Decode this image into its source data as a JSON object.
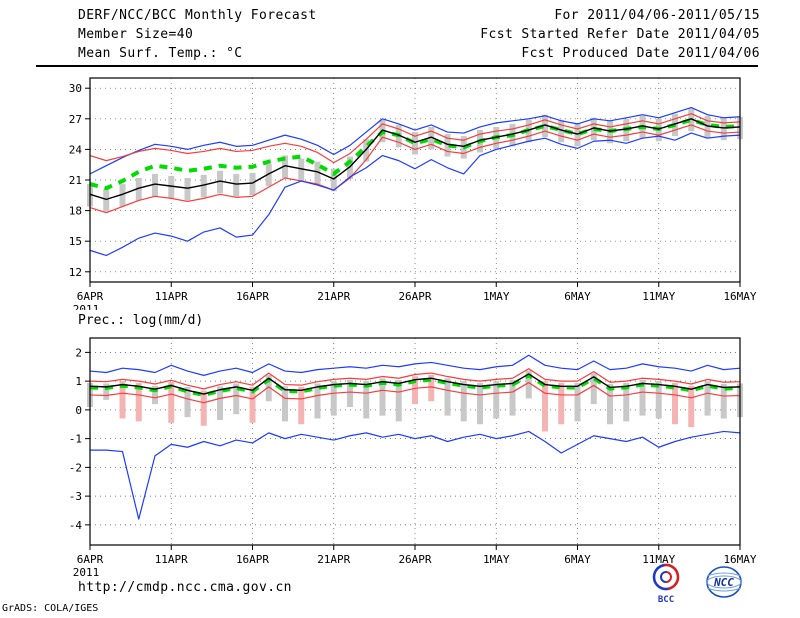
{
  "header": {
    "title": "DERF/NCC/BCC Monthly Forecast",
    "member_size": "Member Size=40",
    "for_range": "For 2011/04/06-2011/05/15",
    "fcst_started": "Fcst Started Refer Date 2011/04/05",
    "fcst_produced": "Fcst Produced Date 2011/04/06"
  },
  "footer": {
    "url": "http://cmdp.ncc.cma.gov.cn",
    "credit": "GrADS: COLA/IGES",
    "logos": [
      {
        "label": "BCC"
      },
      {
        "label": "NCC"
      }
    ]
  },
  "colors": {
    "envelope_blue": "#1e3cff",
    "std_red": "#fa3c3c",
    "mean_black": "#000000",
    "obs_green": "#00dc00",
    "bar_gray": "#c8c8c8",
    "bar_pink": "#f5b4b4"
  },
  "chart_data": [
    {
      "type": "line",
      "title": "Mean Surf. Temp.: °C",
      "x_tick_labels": [
        "6APR",
        "11APR",
        "16APR",
        "21APR",
        "26APR",
        "1MAY",
        "6MAY",
        "11MAY",
        "16MAY"
      ],
      "x_tick_days": [
        0,
        5,
        10,
        15,
        20,
        25,
        30,
        35,
        40
      ],
      "x_sub_label": "2011",
      "x_total_days": 40,
      "ylim": [
        11,
        31
      ],
      "yticks": [
        30,
        27,
        24,
        21,
        18,
        15,
        12
      ],
      "grid": true,
      "bars": {
        "color": "#c8c8c8",
        "pink_color": "#f5b4b4",
        "pink_indices": [],
        "high": [
          20.6,
          20.1,
          20.6,
          21.2,
          21.6,
          21.4,
          21.2,
          21.5,
          21.9,
          21.6,
          21.7,
          22.6,
          23.4,
          23.1,
          22.8,
          22.1,
          23.3,
          25.0,
          26.9,
          26.4,
          25.7,
          26.2,
          25.5,
          25.3,
          25.9,
          26.2,
          26.5,
          26.9,
          27.4,
          26.9,
          26.5,
          27.1,
          26.8,
          27.0,
          27.3,
          27.0,
          27.5,
          28.0,
          27.3,
          27.1,
          27.2
        ],
        "low": [
          18.4,
          17.9,
          18.4,
          19.0,
          19.4,
          19.2,
          19.0,
          19.3,
          19.7,
          19.4,
          19.5,
          20.4,
          21.2,
          20.9,
          20.6,
          19.9,
          21.1,
          22.8,
          24.7,
          24.2,
          23.5,
          24.0,
          23.3,
          23.1,
          23.7,
          24.0,
          24.3,
          24.7,
          25.2,
          24.7,
          24.3,
          24.9,
          24.6,
          24.8,
          25.1,
          24.8,
          25.3,
          25.8,
          25.1,
          24.9,
          25.0
        ]
      },
      "series": [
        {
          "name": "ensemble-max",
          "color": "#1e3cff",
          "width": 1.2,
          "values": [
            21.6,
            22.4,
            23.2,
            23.9,
            24.5,
            24.3,
            24.0,
            24.4,
            24.7,
            24.3,
            24.4,
            24.9,
            25.4,
            25.0,
            24.4,
            23.5,
            24.4,
            25.7,
            27.0,
            26.5,
            25.9,
            26.4,
            25.7,
            25.6,
            26.2,
            26.6,
            26.8,
            27.0,
            27.3,
            26.8,
            26.5,
            27.0,
            26.8,
            27.1,
            27.4,
            27.1,
            27.6,
            28.1,
            27.4,
            27.1,
            27.2
          ]
        },
        {
          "name": "upper-std",
          "color": "#fa3c3c",
          "width": 1.2,
          "values": [
            23.4,
            22.9,
            23.3,
            23.8,
            24.1,
            23.9,
            23.6,
            23.8,
            24.1,
            23.8,
            23.9,
            24.3,
            24.6,
            24.3,
            23.7,
            22.7,
            23.6,
            25.0,
            26.5,
            26.0,
            25.3,
            25.8,
            25.1,
            24.9,
            25.5,
            25.8,
            26.0,
            26.4,
            26.9,
            26.4,
            26.0,
            26.5,
            26.2,
            26.5,
            26.8,
            26.5,
            27.0,
            27.5,
            26.8,
            26.6,
            26.7
          ]
        },
        {
          "name": "lower-std",
          "color": "#fa3c3c",
          "width": 1.2,
          "values": [
            18.3,
            17.8,
            18.4,
            19.0,
            19.4,
            19.2,
            18.9,
            19.2,
            19.6,
            19.3,
            19.4,
            20.3,
            21.2,
            20.9,
            20.6,
            20.0,
            21.2,
            23.0,
            25.2,
            24.7,
            24.0,
            24.5,
            23.8,
            23.6,
            24.2,
            24.6,
            24.9,
            25.3,
            25.8,
            25.3,
            24.9,
            25.5,
            25.2,
            25.4,
            25.7,
            25.4,
            25.9,
            26.4,
            25.8,
            25.6,
            25.7
          ]
        },
        {
          "name": "ensemble-min",
          "color": "#1e3cff",
          "width": 1.2,
          "values": [
            14.1,
            13.6,
            14.4,
            15.3,
            15.8,
            15.5,
            15.0,
            15.9,
            16.3,
            15.4,
            15.6,
            17.6,
            20.3,
            20.9,
            20.5,
            20.0,
            21.3,
            22.2,
            23.4,
            22.9,
            22.1,
            23.0,
            22.2,
            21.6,
            23.4,
            24.0,
            24.4,
            24.8,
            25.1,
            24.5,
            24.1,
            24.8,
            24.9,
            24.6,
            25.1,
            25.3,
            24.9,
            25.6,
            25.1,
            25.3,
            25.4
          ]
        },
        {
          "name": "obs-estimate",
          "color": "#00dc00",
          "width": 4,
          "dash": "8,7",
          "values": [
            20.6,
            20.2,
            20.9,
            21.8,
            22.4,
            22.2,
            21.9,
            22.1,
            22.4,
            22.2,
            22.3,
            22.8,
            23.1,
            23.3,
            22.5,
            21.6,
            22.8,
            24.3,
            25.7,
            25.4,
            24.6,
            25.0,
            24.4,
            24.2,
            24.8,
            25.2,
            25.4,
            25.9,
            26.3,
            25.9,
            25.5,
            26.0,
            25.8,
            26.0,
            26.2,
            26.0,
            26.4,
            26.9,
            26.4,
            26.2,
            26.3
          ]
        },
        {
          "name": "ensemble-mean",
          "color": "#000000",
          "width": 1.4,
          "values": [
            19.6,
            19.1,
            19.6,
            20.2,
            20.6,
            20.4,
            20.2,
            20.5,
            20.9,
            20.6,
            20.7,
            21.6,
            22.4,
            22.1,
            21.8,
            21.1,
            22.3,
            24.0,
            25.9,
            25.4,
            24.7,
            25.2,
            24.5,
            24.3,
            24.9,
            25.2,
            25.5,
            25.9,
            26.4,
            25.9,
            25.5,
            26.1,
            25.8,
            26.0,
            26.3,
            26.0,
            26.5,
            27.0,
            26.3,
            26.1,
            26.2
          ]
        }
      ]
    },
    {
      "type": "line",
      "title": "Prec.: log(mm/d)",
      "x_tick_labels": [
        "6APR",
        "11APR",
        "16APR",
        "21APR",
        "26APR",
        "1MAY",
        "6MAY",
        "11MAY",
        "16MAY"
      ],
      "x_tick_days": [
        0,
        5,
        10,
        15,
        20,
        25,
        30,
        35,
        40
      ],
      "x_sub_label": "2011",
      "x_total_days": 40,
      "ylim": [
        -4.7,
        2.5
      ],
      "yticks": [
        2,
        1,
        0,
        -1,
        -2,
        -3,
        -4
      ],
      "grid": true,
      "bars": {
        "color": "#c8c8c8",
        "pink_color": "#f5b4b4",
        "pink_indices": [
          2,
          3,
          5,
          7,
          10,
          13,
          20,
          21,
          28,
          29,
          36,
          37
        ],
        "high": [
          0.94,
          0.92,
          1.0,
          0.94,
          0.84,
          0.97,
          0.8,
          0.67,
          0.82,
          0.92,
          0.8,
          1.22,
          0.82,
          0.8,
          0.92,
          1.0,
          1.04,
          1.0,
          1.1,
          1.04,
          1.17,
          1.22,
          1.1,
          1.0,
          0.94,
          1.0,
          1.04,
          1.37,
          1.0,
          0.94,
          0.94,
          1.27,
          0.9,
          0.94,
          1.04,
          1.0,
          0.94,
          0.84,
          1.0,
          0.9,
          0.92
        ],
        "low": [
          0.1,
          0.35,
          -0.3,
          -0.4,
          0.2,
          -0.45,
          -0.25,
          -0.55,
          -0.35,
          -0.15,
          -0.45,
          0.3,
          -0.4,
          -0.5,
          -0.3,
          -0.2,
          0.1,
          -0.3,
          -0.2,
          -0.4,
          0.2,
          0.3,
          -0.2,
          -0.4,
          -0.5,
          -0.3,
          -0.2,
          0.4,
          -0.75,
          -0.5,
          -0.4,
          0.2,
          -0.5,
          -0.4,
          -0.2,
          -0.3,
          -0.5,
          -0.6,
          -0.2,
          -0.3,
          -0.25
        ]
      },
      "series": [
        {
          "name": "ensemble-max",
          "color": "#1e3cff",
          "width": 1.2,
          "values": [
            1.35,
            1.3,
            1.45,
            1.4,
            1.3,
            1.55,
            1.35,
            1.2,
            1.35,
            1.45,
            1.3,
            1.6,
            1.35,
            1.3,
            1.4,
            1.45,
            1.5,
            1.45,
            1.55,
            1.5,
            1.6,
            1.65,
            1.55,
            1.45,
            1.4,
            1.5,
            1.55,
            1.9,
            1.55,
            1.45,
            1.4,
            1.7,
            1.4,
            1.45,
            1.6,
            1.5,
            1.45,
            1.35,
            1.55,
            1.4,
            1.45
          ]
        },
        {
          "name": "upper-std",
          "color": "#fa3c3c",
          "width": 1.2,
          "values": [
            1.0,
            0.98,
            1.06,
            1.0,
            0.9,
            1.03,
            0.86,
            0.73,
            0.88,
            0.98,
            0.86,
            1.28,
            0.88,
            0.86,
            0.98,
            1.06,
            1.1,
            1.06,
            1.16,
            1.1,
            1.23,
            1.28,
            1.16,
            1.06,
            1.0,
            1.06,
            1.1,
            1.43,
            1.06,
            1.0,
            1.0,
            1.33,
            0.96,
            1.0,
            1.1,
            1.06,
            1.0,
            0.9,
            1.06,
            0.96,
            0.98
          ]
        },
        {
          "name": "lower-std",
          "color": "#fa3c3c",
          "width": 1.2,
          "values": [
            0.52,
            0.5,
            0.58,
            0.52,
            0.42,
            0.55,
            0.38,
            0.25,
            0.4,
            0.5,
            0.38,
            0.8,
            0.4,
            0.38,
            0.5,
            0.58,
            0.62,
            0.58,
            0.68,
            0.62,
            0.75,
            0.8,
            0.68,
            0.58,
            0.52,
            0.58,
            0.62,
            0.95,
            0.58,
            0.52,
            0.52,
            0.85,
            0.48,
            0.52,
            0.62,
            0.58,
            0.52,
            0.42,
            0.58,
            0.48,
            0.5
          ]
        },
        {
          "name": "ensemble-min",
          "color": "#1e3cff",
          "width": 1.2,
          "values": [
            -1.4,
            -1.4,
            -1.45,
            -3.8,
            -1.6,
            -1.2,
            -1.3,
            -1.1,
            -1.25,
            -1.05,
            -1.15,
            -0.8,
            -1.0,
            -0.85,
            -0.95,
            -1.05,
            -0.9,
            -0.8,
            -0.95,
            -0.85,
            -1.0,
            -0.9,
            -1.1,
            -0.95,
            -0.85,
            -1.0,
            -0.9,
            -0.75,
            -1.1,
            -1.5,
            -1.2,
            -0.9,
            -1.0,
            -1.1,
            -0.95,
            -1.3,
            -1.1,
            -0.95,
            -0.85,
            -0.75,
            -0.8
          ]
        },
        {
          "name": "obs-estimate",
          "color": "#00dc00",
          "width": 4,
          "dash": "8,7",
          "values": [
            0.78,
            0.76,
            0.84,
            0.78,
            0.68,
            0.82,
            0.64,
            0.52,
            0.66,
            0.76,
            0.64,
            1.05,
            0.66,
            0.64,
            0.76,
            0.84,
            0.88,
            0.84,
            0.94,
            0.88,
            1.0,
            1.05,
            0.94,
            0.84,
            0.78,
            0.84,
            0.88,
            1.2,
            0.84,
            0.78,
            0.78,
            1.1,
            0.74,
            0.78,
            0.88,
            0.84,
            0.78,
            0.68,
            0.84,
            0.74,
            0.76
          ]
        },
        {
          "name": "ensemble-mean",
          "color": "#000000",
          "width": 1.4,
          "values": [
            0.82,
            0.8,
            0.88,
            0.82,
            0.72,
            0.85,
            0.68,
            0.55,
            0.7,
            0.8,
            0.68,
            1.1,
            0.7,
            0.68,
            0.8,
            0.88,
            0.92,
            0.88,
            0.98,
            0.92,
            1.05,
            1.1,
            0.98,
            0.88,
            0.82,
            0.88,
            0.92,
            1.25,
            0.88,
            0.82,
            0.82,
            1.15,
            0.78,
            0.82,
            0.92,
            0.88,
            0.82,
            0.72,
            0.88,
            0.78,
            0.8
          ]
        }
      ]
    }
  ]
}
